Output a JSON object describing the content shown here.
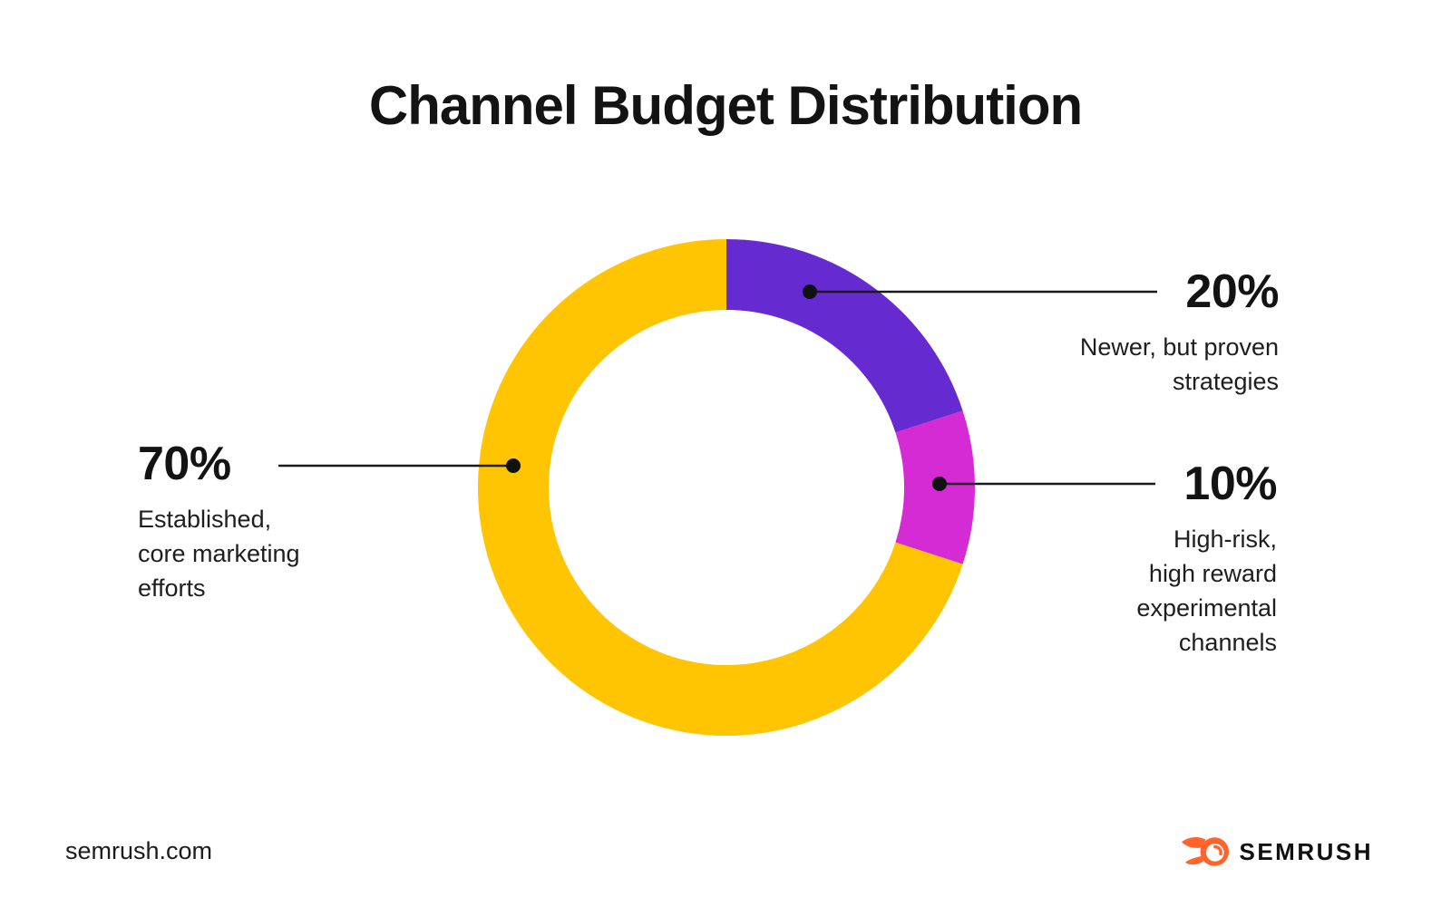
{
  "title": "Channel Budget Distribution",
  "chart_data": {
    "type": "pie",
    "variant": "donut",
    "title": "Channel Budget Distribution",
    "direction": "clockwise",
    "start_angle_deg": -90,
    "legend_position": "callouts",
    "segments": [
      {
        "name": "newer-proven",
        "pct": 20,
        "label": "Newer, but proven strategies",
        "color": "#662BD0"
      },
      {
        "name": "high-risk",
        "pct": 10,
        "label": "High-risk, high reward experimental channels",
        "color": "#D42BD4"
      },
      {
        "name": "established",
        "pct": 70,
        "label": "Established, core marketing efforts",
        "color": "#FFC402"
      }
    ]
  },
  "callouts": {
    "established": {
      "pct": "70%",
      "desc": "Established,\ncore marketing\nefforts"
    },
    "newer": {
      "pct": "20%",
      "desc": "Newer, but proven\nstrategies"
    },
    "highrisk": {
      "pct": "10%",
      "desc": "High-risk,\nhigh reward\nexperimental\nchannels"
    }
  },
  "footer": {
    "site": "semrush.com",
    "brand": "SEMRUSH"
  },
  "colors": {
    "yellow": "#FFC402",
    "purple": "#662BD0",
    "magenta": "#D42BD4",
    "brand_orange": "#FF642D",
    "leader_line": "#1A1A1A",
    "text": "#131313"
  }
}
